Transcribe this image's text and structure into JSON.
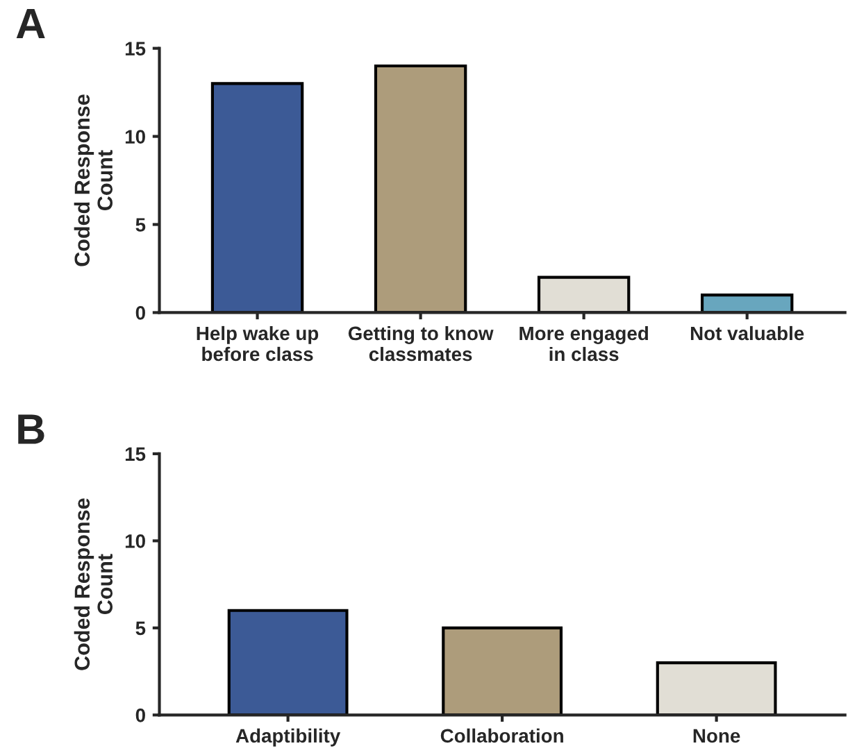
{
  "chart_data": [
    {
      "type": "bar",
      "title": "A",
      "ylabel": "Coded Response\nCount",
      "categories": [
        "Help wake up\nbefore class",
        "Getting to know\nclassmates",
        "More engaged\nin class",
        "Not valuable"
      ],
      "values": [
        13,
        14,
        2,
        1
      ],
      "colors": [
        "#2d55a5",
        "#b59f73",
        "#e3dfd3",
        "#5aaccc"
      ],
      "ylim": [
        0,
        15
      ],
      "yticks": [
        0,
        5,
        10,
        15
      ],
      "grid": false,
      "legend": false
    },
    {
      "type": "bar",
      "title": "B",
      "ylabel": "Coded Response\nCount",
      "categories": [
        "Adaptibility",
        "Collaboration",
        "None"
      ],
      "values": [
        6,
        5,
        3
      ],
      "colors": [
        "#2d55a5",
        "#b59f73",
        "#e3dfd3"
      ],
      "ylim": [
        0,
        15
      ],
      "yticks": [
        0,
        5,
        10,
        15
      ],
      "grid": false,
      "legend": false
    }
  ]
}
